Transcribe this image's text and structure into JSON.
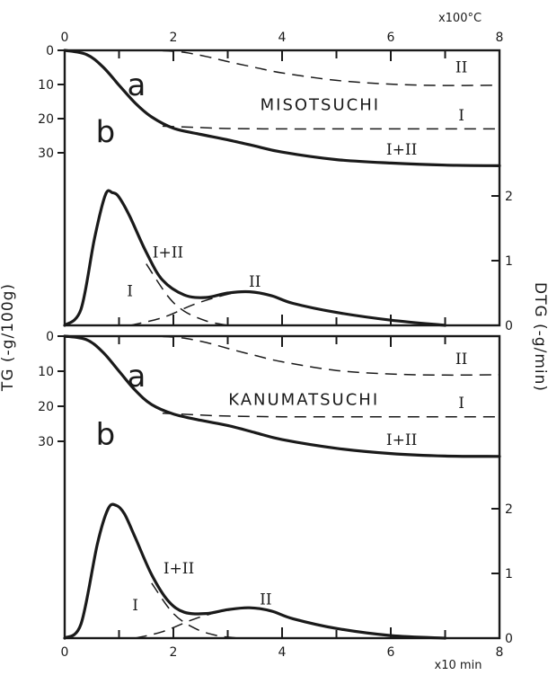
{
  "chart_data": [
    {
      "type": "line",
      "title": "MISOTSUCHI",
      "xlabel": "x10 min",
      "x2label": "x100°C",
      "ylabel": "TG (-g/100g)",
      "y2label": "DTG (-g/min)",
      "xlim": [
        0,
        8
      ],
      "x2lim": [
        0,
        8
      ],
      "ylim": [
        0,
        40
      ],
      "y2lim": [
        0,
        3
      ],
      "x_ticks": [
        "0",
        "2",
        "4",
        "6",
        "8"
      ],
      "x2_ticks": [
        "0",
        "2",
        "4",
        "6",
        "8"
      ],
      "y_ticks": [
        "0",
        "10",
        "20",
        "30"
      ],
      "y2_ticks": [
        "0",
        "1",
        "2"
      ],
      "curve_labels": {
        "tg": "a",
        "dtg": "b"
      },
      "annotations": [
        "I",
        "II",
        "I+II",
        "I+II",
        "I",
        "II"
      ],
      "series": [
        {
          "axis": "left",
          "style": "solid",
          "x": [
            0,
            0.4,
            0.7,
            1.0,
            1.3,
            1.6,
            2.0,
            2.5,
            3.0,
            3.5,
            4.0,
            5.0,
            6.0,
            7.0,
            8.0
          ],
          "y": [
            0,
            1.2,
            4.8,
            10.2,
            15.5,
            19.5,
            22.8,
            24.6,
            26.2,
            28.0,
            29.8,
            32.0,
            33.0,
            33.6,
            33.8
          ]
        },
        {
          "axis": "left",
          "style": "dashed",
          "x": [
            1.8,
            2.5,
            3.0,
            4.0,
            5.0,
            6.0,
            7.0,
            8.0
          ],
          "y": [
            22.2,
            22.6,
            22.9,
            23.0,
            23.0,
            23.0,
            23.0,
            23.0
          ]
        },
        {
          "axis": "left",
          "style": "dashed",
          "x": [
            1.8,
            2.2,
            2.6,
            3.0,
            3.5,
            4.0,
            5.0,
            6.0,
            7.0,
            8.0
          ],
          "y": [
            0.1,
            0.6,
            1.8,
            3.3,
            5.0,
            6.6,
            8.8,
            9.9,
            10.3,
            10.2
          ]
        },
        {
          "axis": "right",
          "style": "solid",
          "x": [
            0,
            0.3,
            0.55,
            0.75,
            0.88,
            1.0,
            1.2,
            1.5,
            1.8,
            2.2,
            2.6,
            3.0,
            3.4,
            3.8,
            4.2,
            5.0,
            6.0,
            7.0
          ],
          "y": [
            0,
            0.25,
            1.35,
            2.02,
            2.05,
            1.98,
            1.68,
            1.13,
            0.7,
            0.47,
            0.43,
            0.5,
            0.52,
            0.46,
            0.34,
            0.2,
            0.08,
            0
          ]
        },
        {
          "axis": "right",
          "style": "dashed",
          "x": [
            1.5,
            1.9,
            2.2,
            2.6,
            3.0
          ],
          "y": [
            0.95,
            0.45,
            0.22,
            0.07,
            0
          ]
        },
        {
          "axis": "right",
          "style": "dashed",
          "x": [
            1.2,
            1.8,
            2.4,
            3.0,
            3.4,
            3.8,
            4.2,
            5.0,
            6.0,
            7.0
          ],
          "y": [
            0,
            0.12,
            0.33,
            0.48,
            0.52,
            0.46,
            0.34,
            0.2,
            0.08,
            0
          ]
        }
      ]
    },
    {
      "type": "line",
      "title": "KANUMATSUCHI",
      "xlabel": "x10 min",
      "x2label": "x100°C",
      "ylabel": "TG (-g/100g)",
      "y2label": "DTG (-g/min)",
      "xlim": [
        0,
        8
      ],
      "ylim": [
        0,
        40
      ],
      "y2lim": [
        0,
        3
      ],
      "x_ticks": [
        "0",
        "2",
        "4",
        "6",
        "8"
      ],
      "y_ticks": [
        "0",
        "10",
        "20",
        "30"
      ],
      "y2_ticks": [
        "0",
        "1",
        "2"
      ],
      "curve_labels": {
        "tg": "a",
        "dtg": "b"
      },
      "annotations": [
        "I",
        "II",
        "I+II",
        "I+II",
        "I",
        "II"
      ],
      "series": [
        {
          "axis": "left",
          "style": "solid",
          "x": [
            0,
            0.4,
            0.7,
            1.0,
            1.3,
            1.6,
            2.0,
            2.5,
            3.0,
            3.5,
            4.0,
            5.0,
            6.0,
            7.0,
            8.0
          ],
          "y": [
            0,
            1.0,
            4.5,
            10.0,
            15.5,
            19.5,
            22.2,
            24.0,
            25.5,
            27.5,
            29.5,
            32.0,
            33.5,
            34.2,
            34.3
          ]
        },
        {
          "axis": "left",
          "style": "dashed",
          "x": [
            1.8,
            2.5,
            3.0,
            4.0,
            5.0,
            6.0,
            7.0,
            8.0
          ],
          "y": [
            22.0,
            22.5,
            22.8,
            23.0,
            23.0,
            23.0,
            23.0,
            23.0
          ]
        },
        {
          "axis": "left",
          "style": "dashed",
          "x": [
            1.8,
            2.2,
            2.6,
            3.0,
            3.5,
            4.0,
            5.0,
            6.0,
            7.0,
            8.0
          ],
          "y": [
            0.1,
            0.6,
            1.8,
            3.5,
            5.5,
            7.3,
            9.8,
            10.8,
            11.1,
            11.0
          ]
        },
        {
          "axis": "right",
          "style": "solid",
          "x": [
            0,
            0.3,
            0.6,
            0.8,
            0.95,
            1.1,
            1.3,
            1.6,
            1.9,
            2.2,
            2.6,
            3.0,
            3.4,
            3.8,
            4.2,
            5.0,
            6.0,
            7.0
          ],
          "y": [
            0,
            0.22,
            1.45,
            2.0,
            2.05,
            1.92,
            1.55,
            0.98,
            0.58,
            0.4,
            0.38,
            0.44,
            0.47,
            0.42,
            0.3,
            0.15,
            0.04,
            0
          ]
        },
        {
          "axis": "right",
          "style": "dashed",
          "x": [
            1.6,
            2.0,
            2.4,
            2.8,
            3.2
          ],
          "y": [
            0.85,
            0.38,
            0.15,
            0.04,
            0
          ]
        },
        {
          "axis": "right",
          "style": "dashed",
          "x": [
            1.3,
            1.8,
            2.4,
            3.0,
            3.4,
            3.8,
            4.2,
            5.0,
            6.0,
            7.0
          ],
          "y": [
            0,
            0.1,
            0.3,
            0.44,
            0.47,
            0.42,
            0.3,
            0.15,
            0.04,
            0
          ]
        }
      ]
    }
  ]
}
